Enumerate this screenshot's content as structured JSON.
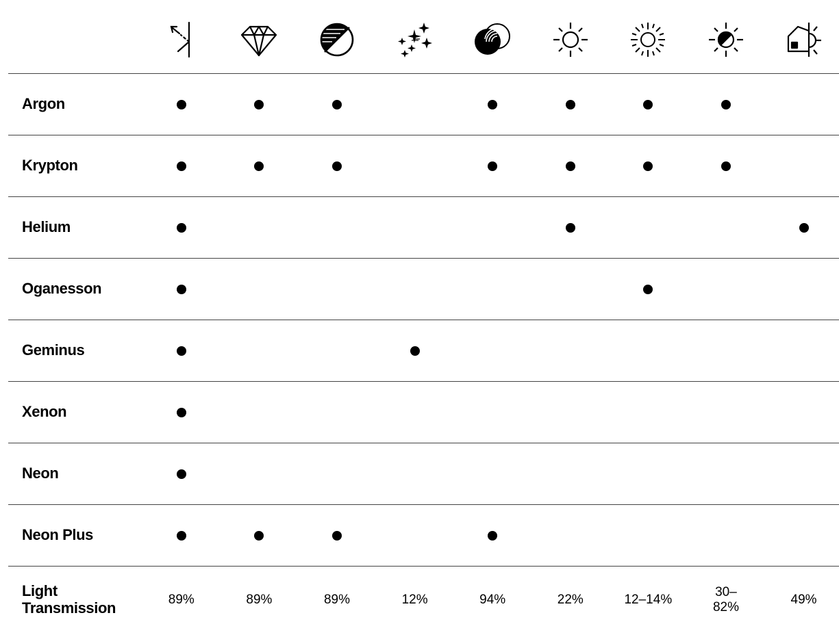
{
  "columns": [
    {
      "icon": "reflection-icon"
    },
    {
      "icon": "diamond-icon"
    },
    {
      "icon": "anti-glare-icon"
    },
    {
      "icon": "sparkle-icon"
    },
    {
      "icon": "contrast-circles-icon"
    },
    {
      "icon": "sun-icon"
    },
    {
      "icon": "bright-sun-icon"
    },
    {
      "icon": "half-sun-icon"
    },
    {
      "icon": "house-sun-icon"
    }
  ],
  "rows": [
    {
      "label": "Argon",
      "marks": [
        true,
        true,
        true,
        false,
        true,
        true,
        true,
        true,
        false
      ]
    },
    {
      "label": "Krypton",
      "marks": [
        true,
        true,
        true,
        false,
        true,
        true,
        true,
        true,
        false
      ]
    },
    {
      "label": "Helium",
      "marks": [
        true,
        false,
        false,
        false,
        false,
        true,
        false,
        false,
        true
      ]
    },
    {
      "label": "Oganesson",
      "marks": [
        true,
        false,
        false,
        false,
        false,
        false,
        true,
        false,
        false
      ]
    },
    {
      "label": "Geminus",
      "marks": [
        true,
        false,
        false,
        true,
        false,
        false,
        false,
        false,
        false
      ]
    },
    {
      "label": "Xenon",
      "marks": [
        true,
        false,
        false,
        false,
        false,
        false,
        false,
        false,
        false
      ]
    },
    {
      "label": "Neon",
      "marks": [
        true,
        false,
        false,
        false,
        false,
        false,
        false,
        false,
        false
      ]
    },
    {
      "label": "Neon Plus",
      "marks": [
        true,
        true,
        true,
        false,
        true,
        false,
        false,
        false,
        false
      ]
    }
  ],
  "light_transmission": {
    "label": "Light Transmission",
    "values": [
      "89%",
      "89%",
      "89%",
      "12%",
      "94%",
      "22%",
      "12–14%",
      "30–82%",
      "49%"
    ]
  },
  "colors": {
    "ink": "#000000",
    "rule": "#444444",
    "background": "#ffffff"
  }
}
